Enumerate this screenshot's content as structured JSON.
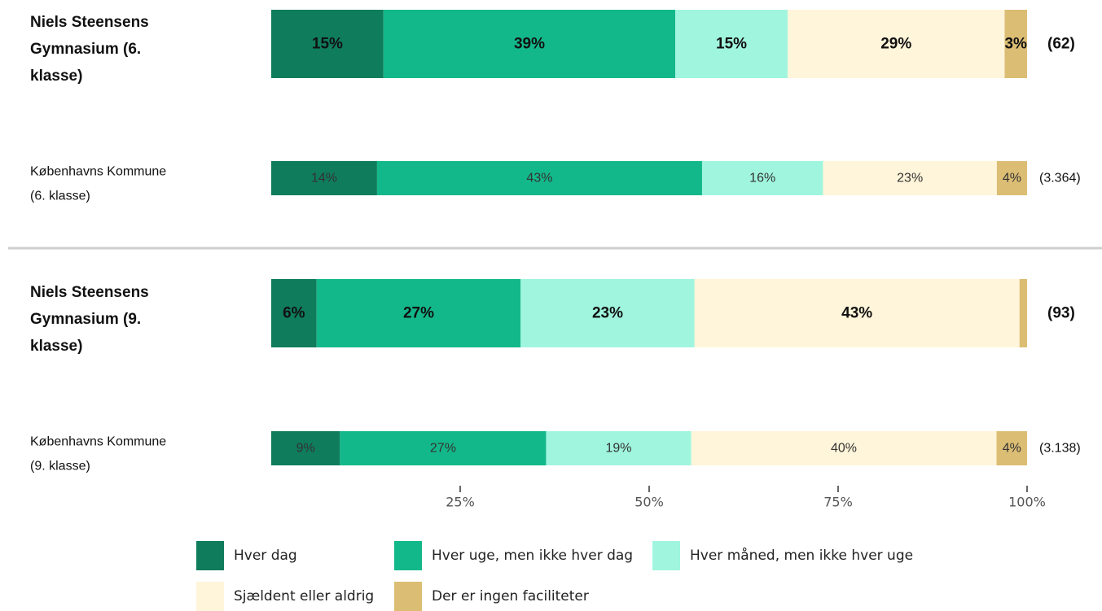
{
  "chart_data": {
    "type": "bar",
    "orientation": "horizontal",
    "stacked": true,
    "rows": [
      {
        "label": "Niels Steensens Gymnasium (6. klasse)",
        "label_lines": [
          "Niels Steensens",
          "Gymnasium (6.",
          "klasse)"
        ],
        "emphasis": true,
        "values": [
          15,
          39,
          15,
          29,
          3
        ],
        "value_labels": [
          "15%",
          "39%",
          "15%",
          "29%",
          "3%"
        ],
        "n": "(62)"
      },
      {
        "label": "Københavns Kommune (6. klasse)",
        "label_lines": [
          "Københavns Kommune",
          "(6. klasse)"
        ],
        "emphasis": false,
        "values": [
          14,
          43,
          16,
          23,
          4
        ],
        "value_labels": [
          "14%",
          "43%",
          "16%",
          "23%",
          "4%"
        ],
        "n": "(3.364)"
      },
      {
        "label": "Niels Steensens Gymnasium (9. klasse)",
        "label_lines": [
          "Niels Steensens",
          "Gymnasium (9.",
          "klasse)"
        ],
        "emphasis": true,
        "values": [
          6,
          27,
          23,
          43,
          1
        ],
        "value_labels": [
          "6%",
          "27%",
          "23%",
          "43%",
          ""
        ],
        "n": "(93)"
      },
      {
        "label": "Københavns Kommune (9. klasse)",
        "label_lines": [
          "Københavns Kommune",
          "(9. klasse)"
        ],
        "emphasis": false,
        "values": [
          9,
          27,
          19,
          40,
          4
        ],
        "value_labels": [
          "9%",
          "27%",
          "19%",
          "40%",
          "4%"
        ],
        "n": "(3.138)"
      }
    ],
    "series": [
      {
        "name": "Hver dag",
        "color": "#0f7c5c"
      },
      {
        "name": "Hver uge, men ikke hver dag",
        "color": "#13b88a"
      },
      {
        "name": "Hver måned, men ikke hver uge",
        "color": "#a0f5de"
      },
      {
        "name": "Sjældent eller aldrig",
        "color": "#fff5da"
      },
      {
        "name": "Der er ingen faciliteter",
        "color": "#dcbd74"
      }
    ],
    "x_ticks": [
      25,
      50,
      75,
      100
    ],
    "x_tick_labels": [
      "25%",
      "50%",
      "75%",
      "100%"
    ],
    "xlim": [
      0,
      100
    ],
    "legend_position": "bottom"
  }
}
